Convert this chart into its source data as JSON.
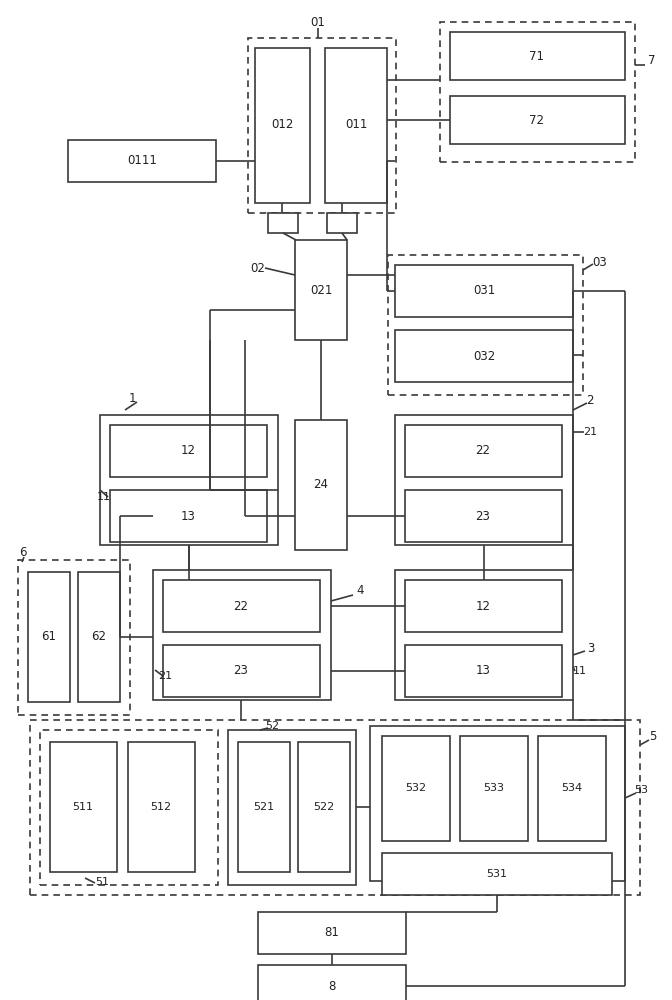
{
  "bg_color": "#ffffff",
  "lc": "#3a3a3a",
  "fc": "#ffffff"
}
